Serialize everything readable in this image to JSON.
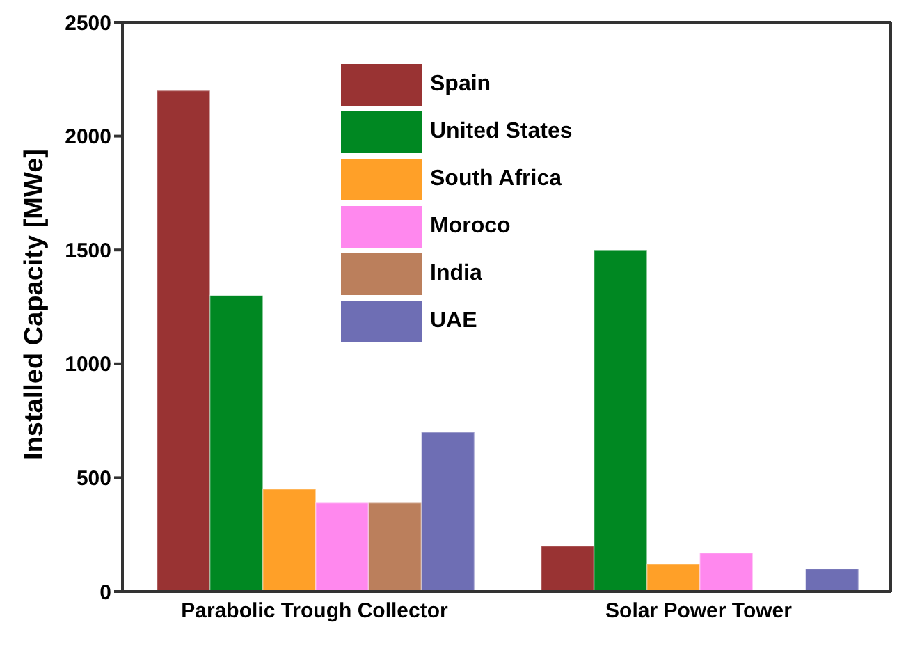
{
  "chart_data": {
    "type": "bar",
    "ylabel": "Installed Capacity [MWe]",
    "categories": [
      "Parabolic Trough Collector",
      "Solar Power Tower"
    ],
    "series": [
      {
        "name": "Spain",
        "color": "#993333",
        "values": [
          2200,
          200
        ]
      },
      {
        "name": "United States",
        "color": "#008822",
        "values": [
          1300,
          1500
        ]
      },
      {
        "name": "South Africa",
        "color": "#ffa028",
        "values": [
          450,
          120
        ]
      },
      {
        "name": "Moroco",
        "color": "#ff88ee",
        "values": [
          390,
          170
        ]
      },
      {
        "name": "India",
        "color": "#bb7f5c",
        "values": [
          390,
          null
        ]
      },
      {
        "name": "UAE",
        "color": "#6e6eb4",
        "values": [
          700,
          100
        ]
      }
    ],
    "ylim": [
      0,
      2500
    ],
    "yticks": [
      0,
      500,
      1000,
      1500,
      2000,
      2500
    ],
    "grid": false,
    "legend": "top"
  }
}
